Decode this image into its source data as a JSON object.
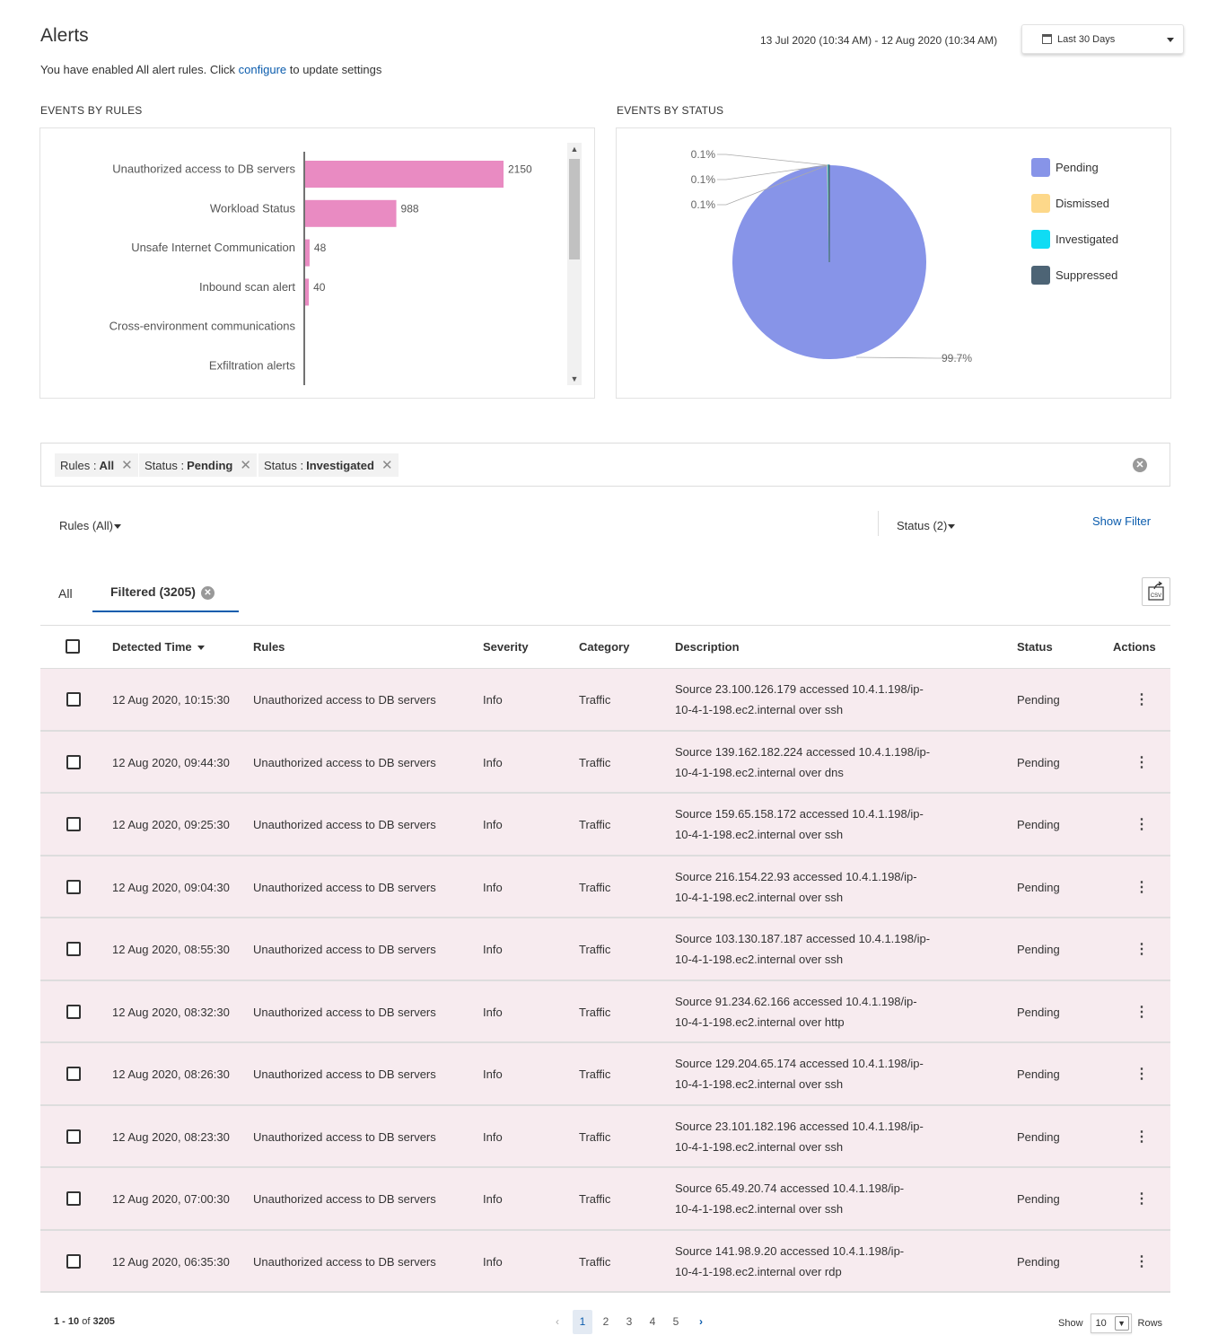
{
  "header": {
    "title": "Alerts",
    "subtitle_prefix": "You have enabled All alert rules. Click ",
    "subtitle_link": "configure",
    "subtitle_suffix": " to update settings",
    "date_range": "13 Jul 2020 (10:34 AM) - 12 Aug 2020 (10:34 AM)",
    "period": "Last 30 Days"
  },
  "sections": {
    "by_rules": "EVENTS BY RULES",
    "by_status": "EVENTS BY STATUS"
  },
  "chart_data": [
    {
      "type": "bar",
      "orientation": "horizontal",
      "title": "EVENTS BY RULES",
      "categories": [
        "Unauthorized access to DB servers",
        "Workload Status",
        "Unsafe Internet Communication",
        "Inbound scan alert",
        "Cross-environment communications",
        "Exfiltration alerts"
      ],
      "values": [
        2150,
        988,
        48,
        40,
        0,
        0
      ],
      "value_labels": [
        "2150",
        "988",
        "48",
        "40",
        "",
        ""
      ],
      "xlim": [
        0,
        3000
      ],
      "color": "#e98bc2"
    },
    {
      "type": "pie",
      "title": "EVENTS BY STATUS",
      "labels": [
        "Pending",
        "Dismissed",
        "Investigated",
        "Suppressed"
      ],
      "values": [
        99.7,
        0.1,
        0.1,
        0.1
      ],
      "value_labels": [
        "99.7%",
        "0.1%",
        "0.1%",
        "0.1%"
      ],
      "colors": [
        "#8794e8",
        "#fdd88a",
        "#0fdcf4",
        "#4d6475"
      ],
      "legend": "right"
    }
  ],
  "filters": {
    "chips": [
      {
        "key": "Rules :",
        "value": "All"
      },
      {
        "key": "Status :",
        "value": "Pending"
      },
      {
        "key": "Status :",
        "value": "Investigated"
      }
    ],
    "rules_dropdown": "Rules (All)",
    "status_dropdown": "Status (2)",
    "show_filter": "Show Filter"
  },
  "tabs": {
    "all": "All",
    "filtered": "Filtered (3205)",
    "export": "CSV"
  },
  "table": {
    "columns": [
      "Detected Time",
      "Rules",
      "Severity",
      "Category",
      "Description",
      "Status",
      "Actions"
    ],
    "rows": [
      {
        "time": "12 Aug 2020, 10:15:30",
        "rule": "Unauthorized access to DB servers",
        "severity": "Info",
        "category": "Traffic",
        "desc1": "Source 23.100.126.179 accessed 10.4.1.198/ip-",
        "desc2": "10-4-1-198.ec2.internal over ssh",
        "status": "Pending"
      },
      {
        "time": "12 Aug 2020, 09:44:30",
        "rule": "Unauthorized access to DB servers",
        "severity": "Info",
        "category": "Traffic",
        "desc1": "Source 139.162.182.224 accessed 10.4.1.198/ip-",
        "desc2": "10-4-1-198.ec2.internal over dns",
        "status": "Pending"
      },
      {
        "time": "12 Aug 2020, 09:25:30",
        "rule": "Unauthorized access to DB servers",
        "severity": "Info",
        "category": "Traffic",
        "desc1": "Source 159.65.158.172 accessed 10.4.1.198/ip-",
        "desc2": "10-4-1-198.ec2.internal over ssh",
        "status": "Pending"
      },
      {
        "time": "12 Aug 2020, 09:04:30",
        "rule": "Unauthorized access to DB servers",
        "severity": "Info",
        "category": "Traffic",
        "desc1": "Source 216.154.22.93 accessed 10.4.1.198/ip-",
        "desc2": "10-4-1-198.ec2.internal over ssh",
        "status": "Pending"
      },
      {
        "time": "12 Aug 2020, 08:55:30",
        "rule": "Unauthorized access to DB servers",
        "severity": "Info",
        "category": "Traffic",
        "desc1": "Source 103.130.187.187 accessed 10.4.1.198/ip-",
        "desc2": "10-4-1-198.ec2.internal over ssh",
        "status": "Pending"
      },
      {
        "time": "12 Aug 2020, 08:32:30",
        "rule": "Unauthorized access to DB servers",
        "severity": "Info",
        "category": "Traffic",
        "desc1": "Source 91.234.62.166 accessed 10.4.1.198/ip-",
        "desc2": "10-4-1-198.ec2.internal over http",
        "status": "Pending"
      },
      {
        "time": "12 Aug 2020, 08:26:30",
        "rule": "Unauthorized access to DB servers",
        "severity": "Info",
        "category": "Traffic",
        "desc1": "Source 129.204.65.174 accessed 10.4.1.198/ip-",
        "desc2": "10-4-1-198.ec2.internal over ssh",
        "status": "Pending"
      },
      {
        "time": "12 Aug 2020, 08:23:30",
        "rule": "Unauthorized access to DB servers",
        "severity": "Info",
        "category": "Traffic",
        "desc1": "Source 23.101.182.196 accessed 10.4.1.198/ip-",
        "desc2": "10-4-1-198.ec2.internal over ssh",
        "status": "Pending"
      },
      {
        "time": "12 Aug 2020, 07:00:30",
        "rule": "Unauthorized access to DB servers",
        "severity": "Info",
        "category": "Traffic",
        "desc1": "Source 65.49.20.74 accessed 10.4.1.198/ip-",
        "desc2": "10-4-1-198.ec2.internal over ssh",
        "status": "Pending"
      },
      {
        "time": "12 Aug 2020, 06:35:30",
        "rule": "Unauthorized access to DB servers",
        "severity": "Info",
        "category": "Traffic",
        "desc1": "Source 141.98.9.20 accessed 10.4.1.198/ip-",
        "desc2": "10-4-1-198.ec2.internal over rdp",
        "status": "Pending"
      }
    ]
  },
  "pagination": {
    "range": "1 - 10",
    "of": "of",
    "total": "3205",
    "pages": [
      "1",
      "2",
      "3",
      "4",
      "5"
    ],
    "current": "1",
    "show": "Show",
    "rows_value": "10",
    "rows": "Rows"
  }
}
